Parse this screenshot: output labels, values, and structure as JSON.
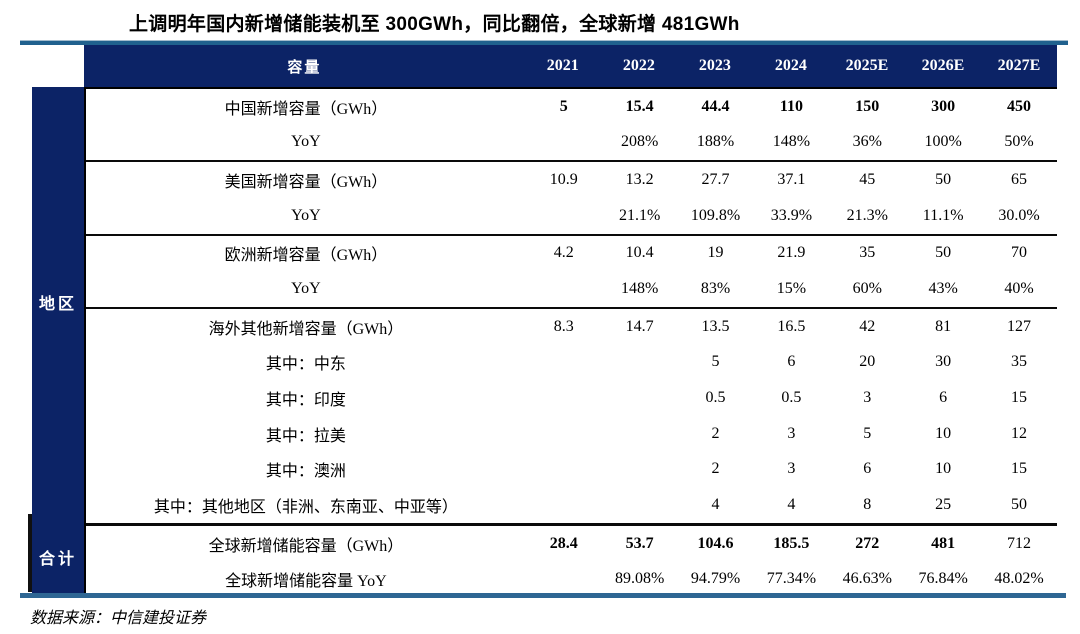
{
  "title": "上调明年国内新增储能装机至 300GWh，同比翻倍，全球新增 481GWh",
  "source": "数据来源：中信建投证券",
  "sidebar": {
    "region_label": "地区",
    "total_label": "合计"
  },
  "colors": {
    "header_navy": "#0c2366",
    "top_rule_blue": "#20618e",
    "bottom_rule_blue": "#2e6693",
    "border_black": "#000000"
  },
  "chart_data": {
    "type": "table",
    "title": "上调明年国内新增储能装机至 300GWh，同比翻倍，全球新增 481GWh",
    "columns": [
      "容量",
      "2021",
      "2022",
      "2023",
      "2024",
      "2025E",
      "2026E",
      "2027E"
    ],
    "row_groups": {
      "地区": [
        0,
        11
      ],
      "合计": [
        12,
        13
      ]
    },
    "rows": [
      {
        "label": "中国新增容量（GWh）",
        "values": [
          "5",
          "15.4",
          "44.4",
          "110",
          "150",
          "300",
          "450"
        ],
        "bold": "all",
        "divider_top": "none"
      },
      {
        "label": "YoY",
        "values": [
          "",
          "208%",
          "188%",
          "148%",
          "36%",
          "100%",
          "50%"
        ],
        "bold": "none",
        "divider_top": "none"
      },
      {
        "label": "美国新增容量（GWh）",
        "values": [
          "10.9",
          "13.2",
          "27.7",
          "37.1",
          "45",
          "50",
          "65"
        ],
        "bold": "none",
        "divider_top": "thin"
      },
      {
        "label": "YoY",
        "values": [
          "",
          "21.1%",
          "109.8%",
          "33.9%",
          "21.3%",
          "11.1%",
          "30.0%"
        ],
        "bold": "none",
        "divider_top": "none"
      },
      {
        "label": "欧洲新增容量（GWh）",
        "values": [
          "4.2",
          "10.4",
          "19",
          "21.9",
          "35",
          "50",
          "70"
        ],
        "bold": "none",
        "divider_top": "thin"
      },
      {
        "label": "YoY",
        "values": [
          "",
          "148%",
          "83%",
          "15%",
          "60%",
          "43%",
          "40%"
        ],
        "bold": "none",
        "divider_top": "none"
      },
      {
        "label": "海外其他新增容量（GWh）",
        "values": [
          "8.3",
          "14.7",
          "13.5",
          "16.5",
          "42",
          "81",
          "127"
        ],
        "bold": "none",
        "divider_top": "thin"
      },
      {
        "label": "其中：中东",
        "values": [
          "",
          "",
          "5",
          "6",
          "20",
          "30",
          "35"
        ],
        "bold": "none",
        "divider_top": "none"
      },
      {
        "label": "其中：印度",
        "values": [
          "",
          "",
          "0.5",
          "0.5",
          "3",
          "6",
          "15"
        ],
        "bold": "none",
        "divider_top": "none"
      },
      {
        "label": "其中：拉美",
        "values": [
          "",
          "",
          "2",
          "3",
          "5",
          "10",
          "12"
        ],
        "bold": "none",
        "divider_top": "none"
      },
      {
        "label": "其中：澳洲",
        "values": [
          "",
          "",
          "2",
          "3",
          "6",
          "10",
          "15"
        ],
        "bold": "none",
        "divider_top": "none"
      },
      {
        "label": "其中：其他地区（非洲、东南亚、中亚等）",
        "values": [
          "",
          "",
          "4",
          "4",
          "8",
          "25",
          "50"
        ],
        "bold": "none",
        "divider_top": "none"
      },
      {
        "label": "全球新增储能容量（GWh）",
        "values": [
          "28.4",
          "53.7",
          "104.6",
          "185.5",
          "272",
          "481",
          "712"
        ],
        "bold": "except-last",
        "divider_top": "thick"
      },
      {
        "label": "全球新增储能容量 YoY",
        "values": [
          "",
          "89.08%",
          "94.79%",
          "77.34%",
          "46.63%",
          "76.84%",
          "48.02%"
        ],
        "bold": "none",
        "divider_top": "none"
      }
    ]
  }
}
